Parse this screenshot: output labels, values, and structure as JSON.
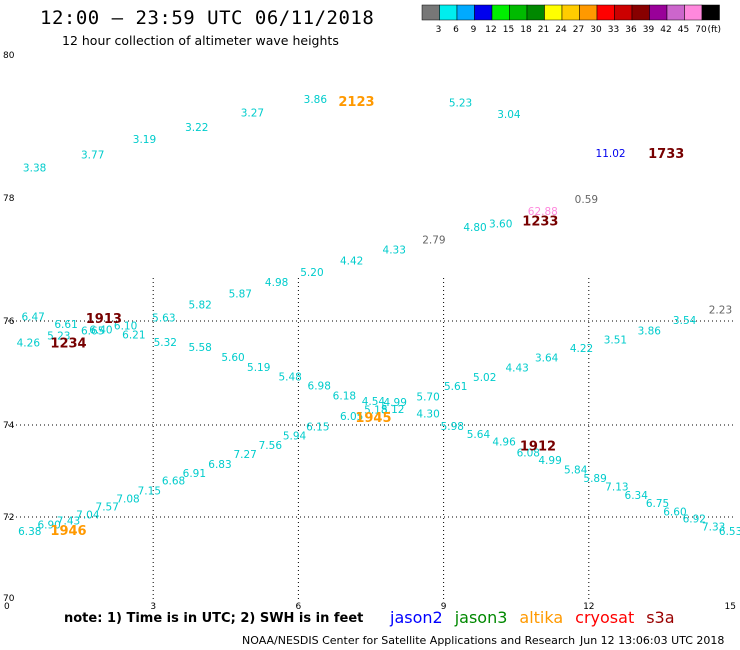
{
  "title": "12:00 – 23:59 UTC 06/11/2018",
  "subtitle": "12 hour collection of altimeter wave heights",
  "note": "note:  1) Time is in UTC;  2) SWH is in feet",
  "credit": "NOAA/NESDIS Center for Satellite Applications and Research",
  "timestamp": "Jun 12 13:06:03 UTC 2018",
  "satellites": [
    {
      "name": "jason2",
      "color": "#0000ff"
    },
    {
      "name": "jason3",
      "color": "#008800"
    },
    {
      "name": "altika",
      "color": "#ff9900"
    },
    {
      "name": "cryosat",
      "color": "#ff0000"
    },
    {
      "name": "s3a",
      "color": "#990000"
    }
  ],
  "chart_data": {
    "type": "scatter",
    "xlim": [
      0,
      15
    ],
    "ylim": [
      70,
      80
    ],
    "x_ticks": [
      "0",
      "3",
      "6",
      "9",
      "12",
      "15"
    ],
    "y_ticks": [
      {
        "value": 70,
        "label": "70"
      },
      {
        "value": 72,
        "label": "72"
      },
      {
        "value": 74,
        "label": "74"
      },
      {
        "value": 76,
        "label": "76"
      },
      {
        "value": 78,
        "label": "78"
      },
      {
        "value": 80,
        "label": "80"
      }
    ],
    "grid": true,
    "color_scale": {
      "unit": "(ft)",
      "bins": [
        {
          "label": "3",
          "color": "#777777"
        },
        {
          "label": "6",
          "color": "#00eeee"
        },
        {
          "label": "9",
          "color": "#00aaff"
        },
        {
          "label": "12",
          "color": "#0000ee"
        },
        {
          "label": "15",
          "color": "#00ee00"
        },
        {
          "label": "18",
          "color": "#00bb00"
        },
        {
          "label": "21",
          "color": "#008800"
        },
        {
          "label": "24",
          "color": "#ffff00"
        },
        {
          "label": "27",
          "color": "#ffcc00"
        },
        {
          "label": "30",
          "color": "#ff9900"
        },
        {
          "label": "33",
          "color": "#ff0000"
        },
        {
          "label": "36",
          "color": "#cc0000"
        },
        {
          "label": "39",
          "color": "#880000"
        },
        {
          "label": "42",
          "color": "#990099"
        },
        {
          "label": "45",
          "color": "#cc66cc"
        },
        {
          "label": "70",
          "color": "#ff88dd"
        },
        {
          "label": "",
          "color": "#000000"
        }
      ]
    },
    "points": [
      {
        "x": 0.55,
        "y": 78.37,
        "v": "3.38",
        "c": "#00cccc"
      },
      {
        "x": 1.75,
        "y": 78.55,
        "v": "3.77",
        "c": "#00cccc"
      },
      {
        "x": 2.82,
        "y": 78.77,
        "v": "3.19",
        "c": "#00cccc"
      },
      {
        "x": 3.9,
        "y": 78.94,
        "v": "3.22",
        "c": "#00cccc"
      },
      {
        "x": 5.05,
        "y": 79.14,
        "v": "3.27",
        "c": "#00cccc"
      },
      {
        "x": 6.35,
        "y": 79.33,
        "v": "3.86",
        "c": "#00cccc"
      },
      {
        "x": 9.35,
        "y": 79.28,
        "v": "5.23",
        "c": "#00cccc"
      },
      {
        "x": 10.35,
        "y": 79.12,
        "v": "3.04",
        "c": "#00cccc"
      },
      {
        "x": 12.45,
        "y": 78.57,
        "v": "11.02",
        "c": "#0000ee"
      },
      {
        "x": 11.95,
        "y": 77.92,
        "v": "0.59",
        "c": "#666666"
      },
      {
        "x": 11.05,
        "y": 77.72,
        "v": "62.88",
        "c": "#ff88dd"
      },
      {
        "x": 10.18,
        "y": 77.52,
        "v": "3.60",
        "c": "#00cccc"
      },
      {
        "x": 9.65,
        "y": 77.46,
        "v": "4.80",
        "c": "#00cccc"
      },
      {
        "x": 8.8,
        "y": 77.26,
        "v": "2.79",
        "c": "#666666"
      },
      {
        "x": 7.98,
        "y": 77.1,
        "v": "4.33",
        "c": "#00cccc"
      },
      {
        "x": 7.1,
        "y": 76.92,
        "v": "4.42",
        "c": "#00cccc"
      },
      {
        "x": 6.28,
        "y": 76.73,
        "v": "5.20",
        "c": "#00cccc"
      },
      {
        "x": 5.55,
        "y": 76.57,
        "v": "4.98",
        "c": "#00cccc"
      },
      {
        "x": 4.8,
        "y": 76.38,
        "v": "5.87",
        "c": "#00cccc"
      },
      {
        "x": 3.97,
        "y": 76.2,
        "v": "5.82",
        "c": "#00cccc"
      },
      {
        "x": 3.22,
        "y": 75.99,
        "v": "5.63",
        "c": "#00cccc"
      },
      {
        "x": 0.52,
        "y": 76.01,
        "v": "6.47",
        "c": "#00cccc"
      },
      {
        "x": 1.2,
        "y": 75.87,
        "v": "6.61",
        "c": "#00cccc"
      },
      {
        "x": 2.43,
        "y": 75.84,
        "v": "6.10",
        "c": "#00cccc"
      },
      {
        "x": 1.92,
        "y": 75.76,
        "v": "6.40",
        "c": "#00cccc"
      },
      {
        "x": 1.75,
        "y": 75.74,
        "v": "6.65",
        "c": "#00cccc"
      },
      {
        "x": 2.6,
        "y": 75.66,
        "v": "6.21",
        "c": "#00cccc"
      },
      {
        "x": 1.05,
        "y": 75.64,
        "v": "5.23",
        "c": "#00cccc"
      },
      {
        "x": 0.42,
        "y": 75.51,
        "v": "4.26",
        "c": "#00cccc"
      },
      {
        "x": 3.25,
        "y": 75.52,
        "v": "5.32",
        "c": "#00cccc"
      },
      {
        "x": 3.97,
        "y": 75.42,
        "v": "5.58",
        "c": "#00cccc"
      },
      {
        "x": 4.65,
        "y": 75.23,
        "v": "5.60",
        "c": "#00cccc"
      },
      {
        "x": 5.18,
        "y": 75.04,
        "v": "5.19",
        "c": "#00cccc"
      },
      {
        "x": 5.83,
        "y": 74.86,
        "v": "5.48",
        "c": "#00cccc"
      },
      {
        "x": 6.43,
        "y": 74.68,
        "v": "6.98",
        "c": "#00cccc"
      },
      {
        "x": 6.95,
        "y": 74.49,
        "v": "6.18",
        "c": "#00cccc"
      },
      {
        "x": 7.55,
        "y": 74.38,
        "v": "4.54",
        "c": "#00cccc"
      },
      {
        "x": 8.0,
        "y": 74.37,
        "v": "4.99",
        "c": "#00cccc"
      },
      {
        "x": 7.6,
        "y": 74.22,
        "v": "5.18",
        "c": "#00cccc"
      },
      {
        "x": 7.95,
        "y": 74.23,
        "v": "5.12",
        "c": "#00cccc"
      },
      {
        "x": 8.68,
        "y": 74.47,
        "v": "5.70",
        "c": "#00cccc"
      },
      {
        "x": 9.25,
        "y": 74.67,
        "v": "5.61",
        "c": "#00cccc"
      },
      {
        "x": 9.85,
        "y": 74.85,
        "v": "5.02",
        "c": "#00cccc"
      },
      {
        "x": 10.52,
        "y": 75.03,
        "v": "4.43",
        "c": "#00cccc"
      },
      {
        "x": 11.13,
        "y": 75.22,
        "v": "3.64",
        "c": "#00cccc"
      },
      {
        "x": 11.85,
        "y": 75.4,
        "v": "4.22",
        "c": "#00cccc"
      },
      {
        "x": 12.55,
        "y": 75.57,
        "v": "3.51",
        "c": "#00cccc"
      },
      {
        "x": 13.25,
        "y": 75.74,
        "v": "3.86",
        "c": "#00cccc"
      },
      {
        "x": 13.98,
        "y": 75.94,
        "v": "3.54",
        "c": "#00cccc"
      },
      {
        "x": 14.72,
        "y": 76.12,
        "v": "2.23",
        "c": "#666666"
      },
      {
        "x": 7.1,
        "y": 74.1,
        "v": "6.05",
        "c": "#00cccc"
      },
      {
        "x": 8.68,
        "y": 74.14,
        "v": "4.30",
        "c": "#00cccc"
      },
      {
        "x": 6.4,
        "y": 73.88,
        "v": "6.15",
        "c": "#00cccc"
      },
      {
        "x": 9.18,
        "y": 73.89,
        "v": "5.98",
        "c": "#00cccc"
      },
      {
        "x": 5.92,
        "y": 73.68,
        "v": "5.94",
        "c": "#00cccc"
      },
      {
        "x": 9.72,
        "y": 73.72,
        "v": "5.64",
        "c": "#00cccc"
      },
      {
        "x": 5.42,
        "y": 73.48,
        "v": "7.56",
        "c": "#00cccc"
      },
      {
        "x": 10.25,
        "y": 73.55,
        "v": "4.96",
        "c": "#00cccc"
      },
      {
        "x": 4.9,
        "y": 73.28,
        "v": "7.27",
        "c": "#00cccc"
      },
      {
        "x": 10.75,
        "y": 73.32,
        "v": "6.08",
        "c": "#00cccc"
      },
      {
        "x": 4.38,
        "y": 73.07,
        "v": "6.83",
        "c": "#00cccc"
      },
      {
        "x": 11.2,
        "y": 73.15,
        "v": "4.99",
        "c": "#00cccc"
      },
      {
        "x": 3.85,
        "y": 72.87,
        "v": "6.91",
        "c": "#00cccc"
      },
      {
        "x": 11.73,
        "y": 72.95,
        "v": "5.84",
        "c": "#00cccc"
      },
      {
        "x": 3.42,
        "y": 72.71,
        "v": "6.68",
        "c": "#00cccc"
      },
      {
        "x": 12.13,
        "y": 72.76,
        "v": "5.89",
        "c": "#00cccc"
      },
      {
        "x": 2.92,
        "y": 72.49,
        "v": "7.15",
        "c": "#00cccc"
      },
      {
        "x": 12.58,
        "y": 72.58,
        "v": "7.13",
        "c": "#00cccc"
      },
      {
        "x": 2.48,
        "y": 72.31,
        "v": "7.08",
        "c": "#00cccc"
      },
      {
        "x": 12.98,
        "y": 72.39,
        "v": "6.34",
        "c": "#00cccc"
      },
      {
        "x": 2.05,
        "y": 72.14,
        "v": "7.57",
        "c": "#00cccc"
      },
      {
        "x": 13.42,
        "y": 72.22,
        "v": "6.75",
        "c": "#00cccc"
      },
      {
        "x": 1.65,
        "y": 71.96,
        "v": "7.04",
        "c": "#00cccc"
      },
      {
        "x": 13.78,
        "y": 72.03,
        "v": "6.60",
        "c": "#00cccc"
      },
      {
        "x": 1.25,
        "y": 71.82,
        "v": "7.43",
        "c": "#00cccc"
      },
      {
        "x": 14.18,
        "y": 71.86,
        "v": "6.92",
        "c": "#00cccc"
      },
      {
        "x": 0.85,
        "y": 71.72,
        "v": "6.90",
        "c": "#00cccc"
      },
      {
        "x": 14.58,
        "y": 71.67,
        "v": "7.33",
        "c": "#00cccc"
      },
      {
        "x": 0.45,
        "y": 71.56,
        "v": "6.38",
        "c": "#00cccc"
      },
      {
        "x": 14.93,
        "y": 71.55,
        "v": "6.53",
        "c": "#00cccc"
      }
    ],
    "pass_times": [
      {
        "x": 7.2,
        "y": 79.29,
        "v": "2123",
        "c": "#ff9900"
      },
      {
        "x": 13.6,
        "y": 78.56,
        "v": "1733",
        "c": "#770000"
      },
      {
        "x": 11.0,
        "y": 77.55,
        "v": "1233",
        "c": "#770000"
      },
      {
        "x": 1.98,
        "y": 75.96,
        "v": "1913",
        "c": "#770000"
      },
      {
        "x": 1.25,
        "y": 75.49,
        "v": "1234",
        "c": "#770000"
      },
      {
        "x": 7.55,
        "y": 74.06,
        "v": "1945",
        "c": "#ff9900"
      },
      {
        "x": 10.95,
        "y": 73.45,
        "v": "1912",
        "c": "#770000"
      },
      {
        "x": 1.25,
        "y": 71.55,
        "v": "1946",
        "c": "#ff9900"
      }
    ]
  }
}
